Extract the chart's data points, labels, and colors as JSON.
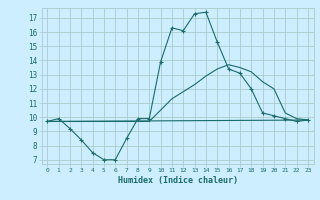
{
  "title": "",
  "xlabel": "Humidex (Indice chaleur)",
  "bg_color": "#cceeff",
  "grid_color": "#aacccc",
  "line_color": "#1a6b6b",
  "xlim": [
    -0.5,
    23.5
  ],
  "ylim": [
    6.7,
    17.7
  ],
  "xticks": [
    0,
    1,
    2,
    3,
    4,
    5,
    6,
    7,
    8,
    9,
    10,
    11,
    12,
    13,
    14,
    15,
    16,
    17,
    18,
    19,
    20,
    21,
    22,
    23
  ],
  "yticks": [
    7,
    8,
    9,
    10,
    11,
    12,
    13,
    14,
    15,
    16,
    17
  ],
  "line1_x": [
    0,
    1,
    2,
    3,
    4,
    5,
    6,
    7,
    8,
    9,
    10,
    11,
    12,
    13,
    14,
    15,
    16,
    17,
    18,
    19,
    20,
    21,
    22,
    23
  ],
  "line1_y": [
    9.7,
    9.9,
    9.2,
    8.4,
    7.5,
    7.0,
    7.0,
    8.5,
    9.9,
    9.9,
    13.9,
    16.3,
    16.1,
    17.3,
    17.4,
    15.3,
    13.4,
    13.1,
    12.0,
    10.3,
    10.1,
    9.9,
    9.7,
    9.8
  ],
  "line2_x": [
    0,
    23
  ],
  "line2_y": [
    9.7,
    9.8
  ],
  "line3_x": [
    0,
    1,
    2,
    3,
    4,
    5,
    6,
    7,
    8,
    9,
    10,
    11,
    12,
    13,
    14,
    15,
    16,
    17,
    18,
    19,
    20,
    21,
    22,
    23
  ],
  "line3_y": [
    9.7,
    9.7,
    9.7,
    9.7,
    9.7,
    9.7,
    9.7,
    9.7,
    9.7,
    9.7,
    10.5,
    11.3,
    11.8,
    12.3,
    12.9,
    13.4,
    13.7,
    13.5,
    13.2,
    12.5,
    12.0,
    10.3,
    9.9,
    9.8
  ]
}
